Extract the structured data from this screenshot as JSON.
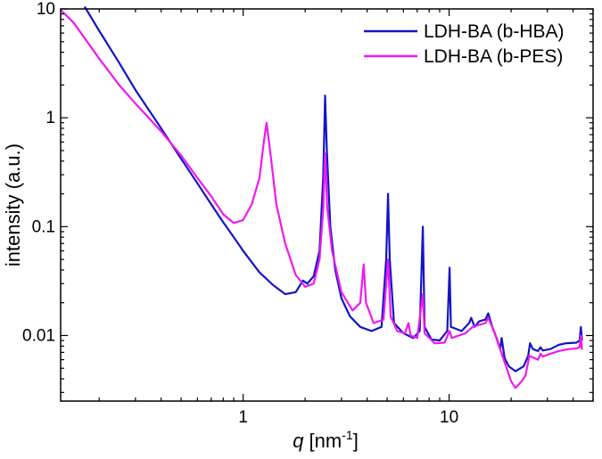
{
  "chart_data": {
    "type": "line",
    "xscale": "log",
    "yscale": "log",
    "xlim": [
      0.13,
      50
    ],
    "ylim": [
      0.0025,
      10
    ],
    "xlabel": {
      "var": "q",
      "units_prefix": " [nm",
      "units_sup": "-1",
      "units_suffix": "]"
    },
    "ylabel": "intensity (a.u.)",
    "xticks": [
      {
        "value": 1,
        "label": "1"
      },
      {
        "value": 10,
        "label": "10"
      }
    ],
    "yticks": [
      {
        "value": 0.01,
        "label": "0.01"
      },
      {
        "value": 0.1,
        "label": "0.1"
      },
      {
        "value": 1,
        "label": "1"
      },
      {
        "value": 10,
        "label": "10"
      }
    ],
    "grid": false,
    "legend": "top-right",
    "series": [
      {
        "name": "LDH-BA (b-HBA)",
        "color": "#1414c8",
        "points": [
          [
            0.17,
            10.5
          ],
          [
            0.2,
            6.3
          ],
          [
            0.25,
            3.2
          ],
          [
            0.3,
            1.8
          ],
          [
            0.4,
            0.8
          ],
          [
            0.5,
            0.42
          ],
          [
            0.6,
            0.25
          ],
          [
            0.7,
            0.16
          ],
          [
            0.8,
            0.11
          ],
          [
            0.9,
            0.08
          ],
          [
            1.0,
            0.06
          ],
          [
            1.2,
            0.038
          ],
          [
            1.4,
            0.029
          ],
          [
            1.6,
            0.024
          ],
          [
            1.8,
            0.025
          ],
          [
            1.95,
            0.032
          ],
          [
            2.05,
            0.03
          ],
          [
            2.2,
            0.035
          ],
          [
            2.35,
            0.06
          ],
          [
            2.45,
            0.3
          ],
          [
            2.5,
            1.6
          ],
          [
            2.55,
            0.5
          ],
          [
            2.65,
            0.1
          ],
          [
            2.8,
            0.04
          ],
          [
            3.0,
            0.022
          ],
          [
            3.3,
            0.015
          ],
          [
            3.7,
            0.012
          ],
          [
            4.2,
            0.011
          ],
          [
            4.7,
            0.012
          ],
          [
            4.95,
            0.05
          ],
          [
            5.05,
            0.2
          ],
          [
            5.15,
            0.05
          ],
          [
            5.4,
            0.013
          ],
          [
            6.0,
            0.0105
          ],
          [
            6.7,
            0.0095
          ],
          [
            7.2,
            0.011
          ],
          [
            7.45,
            0.1
          ],
          [
            7.6,
            0.012
          ],
          [
            8.2,
            0.0092
          ],
          [
            9.0,
            0.009
          ],
          [
            9.8,
            0.011
          ],
          [
            10.05,
            0.042
          ],
          [
            10.2,
            0.012
          ],
          [
            11.5,
            0.011
          ],
          [
            12.5,
            0.013
          ],
          [
            12.8,
            0.0145
          ],
          [
            13.3,
            0.012
          ],
          [
            14.0,
            0.0135
          ],
          [
            15.0,
            0.014
          ],
          [
            15.5,
            0.016
          ],
          [
            16.2,
            0.012
          ],
          [
            17.0,
            0.0095
          ],
          [
            17.7,
            0.0075
          ],
          [
            18.0,
            0.0095
          ],
          [
            18.6,
            0.0062
          ],
          [
            19.5,
            0.0052
          ],
          [
            21.0,
            0.0047
          ],
          [
            23.0,
            0.0052
          ],
          [
            24.2,
            0.0065
          ],
          [
            24.7,
            0.0085
          ],
          [
            25.5,
            0.0075
          ],
          [
            27.0,
            0.0072
          ],
          [
            27.8,
            0.0078
          ],
          [
            28.5,
            0.0073
          ],
          [
            31.0,
            0.0075
          ],
          [
            34.0,
            0.0082
          ],
          [
            37.0,
            0.0085
          ],
          [
            41.5,
            0.0086
          ],
          [
            43.0,
            0.009
          ],
          [
            43.6,
            0.012
          ],
          [
            44.2,
            0.009
          ]
        ]
      },
      {
        "name": "LDH-BA (b-PES)",
        "color": "#f018f0",
        "points": [
          [
            0.13,
            9.8
          ],
          [
            0.15,
            7.5
          ],
          [
            0.2,
            3.5
          ],
          [
            0.25,
            2.0
          ],
          [
            0.3,
            1.35
          ],
          [
            0.4,
            0.75
          ],
          [
            0.5,
            0.45
          ],
          [
            0.6,
            0.28
          ],
          [
            0.7,
            0.19
          ],
          [
            0.8,
            0.13
          ],
          [
            0.9,
            0.108
          ],
          [
            1.0,
            0.115
          ],
          [
            1.1,
            0.16
          ],
          [
            1.2,
            0.28
          ],
          [
            1.26,
            0.6
          ],
          [
            1.3,
            0.9
          ],
          [
            1.36,
            0.45
          ],
          [
            1.45,
            0.16
          ],
          [
            1.6,
            0.07
          ],
          [
            1.8,
            0.036
          ],
          [
            2.0,
            0.028
          ],
          [
            2.2,
            0.03
          ],
          [
            2.35,
            0.05
          ],
          [
            2.45,
            0.15
          ],
          [
            2.5,
            0.47
          ],
          [
            2.56,
            0.15
          ],
          [
            2.7,
            0.06
          ],
          [
            3.0,
            0.025
          ],
          [
            3.4,
            0.017
          ],
          [
            3.7,
            0.02
          ],
          [
            3.85,
            0.045
          ],
          [
            3.95,
            0.02
          ],
          [
            4.3,
            0.013
          ],
          [
            4.8,
            0.014
          ],
          [
            5.05,
            0.05
          ],
          [
            5.2,
            0.015
          ],
          [
            5.6,
            0.011
          ],
          [
            6.1,
            0.0105
          ],
          [
            6.35,
            0.013
          ],
          [
            6.5,
            0.01
          ],
          [
            7.0,
            0.0095
          ],
          [
            7.45,
            0.024
          ],
          [
            7.6,
            0.0105
          ],
          [
            8.5,
            0.0085
          ],
          [
            9.5,
            0.0086
          ],
          [
            10.05,
            0.011
          ],
          [
            10.3,
            0.0095
          ],
          [
            12.0,
            0.0105
          ],
          [
            13.0,
            0.012
          ],
          [
            15.0,
            0.013
          ],
          [
            15.5,
            0.0145
          ],
          [
            16.5,
            0.011
          ],
          [
            18.0,
            0.0068
          ],
          [
            20.0,
            0.0038
          ],
          [
            21.0,
            0.0033
          ],
          [
            22.5,
            0.0038
          ],
          [
            23.5,
            0.0043
          ],
          [
            24.5,
            0.0065
          ],
          [
            25.5,
            0.0063
          ],
          [
            27.0,
            0.006
          ],
          [
            27.8,
            0.0068
          ],
          [
            28.5,
            0.0064
          ],
          [
            31.0,
            0.0068
          ],
          [
            34.0,
            0.0072
          ],
          [
            38.0,
            0.0075
          ],
          [
            41.5,
            0.0076
          ],
          [
            43.0,
            0.0078
          ],
          [
            43.6,
            0.01
          ],
          [
            44.2,
            0.0074
          ]
        ]
      }
    ]
  }
}
